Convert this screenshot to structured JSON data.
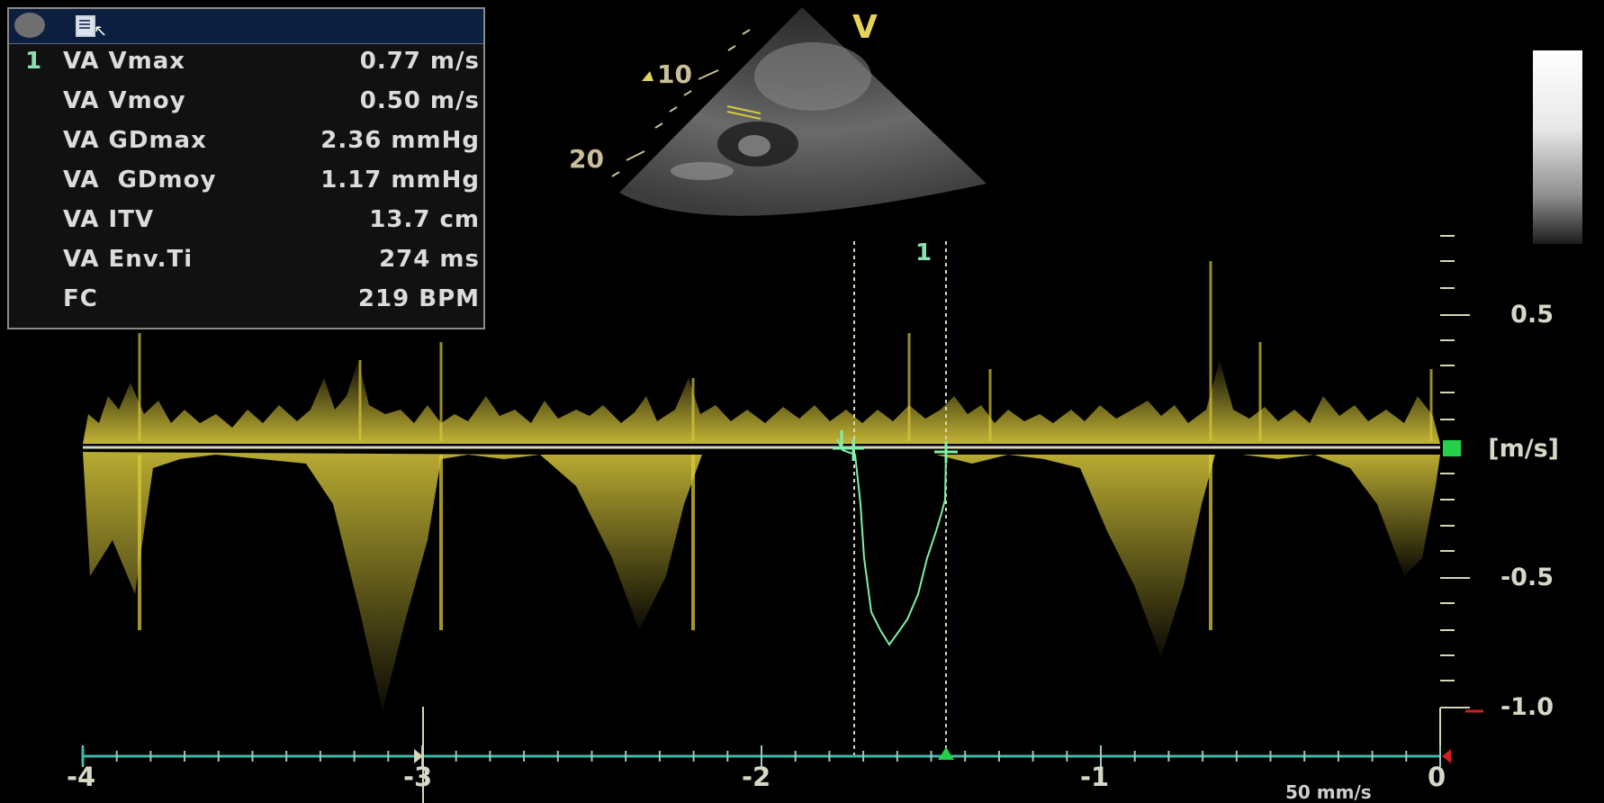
{
  "header": {
    "record_icon": "octagon-record-icon",
    "report_icon": "report-document-icon"
  },
  "measurements": {
    "index": "1",
    "rows": [
      {
        "label": "VA Vmax",
        "value": "0.77 m/s"
      },
      {
        "label": "VA Vmoy",
        "value": "0.50 m/s"
      },
      {
        "label": "VA GDmax",
        "value": "2.36 mmHg"
      },
      {
        "label": "VA  GDmoy",
        "value": "1.17 mmHg"
      },
      {
        "label": "VA ITV",
        "value": "13.7 cm"
      },
      {
        "label": "VA Env.Ti",
        "value": "274 ms"
      },
      {
        "label": "FC",
        "value": "219 BPM"
      }
    ]
  },
  "image_view": {
    "orientation_mark": "V",
    "depth_labels": [
      "10",
      "20"
    ],
    "cursor_label": "1"
  },
  "velocity_scale": {
    "unit": "[m/s]",
    "labels": [
      "0.5",
      "-0.5",
      "-1.0"
    ]
  },
  "time_axis": {
    "labels": [
      "-4",
      "-3",
      "-2",
      "-1",
      "0"
    ],
    "sweep_speed": "50 mm/s"
  },
  "colors": {
    "doppler_signal": "#d8c83a",
    "trace": "#7ef0a8",
    "baseline": "#d6d6b8",
    "time_axis": "#3fb8a8",
    "panel_header": "#0c1f3f",
    "cursor_square": "#25d04a",
    "limit_marker": "#d02020"
  }
}
